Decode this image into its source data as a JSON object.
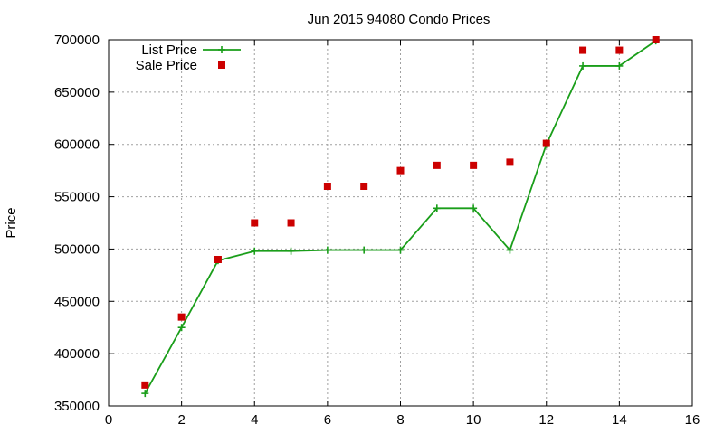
{
  "chart_data": {
    "type": "line",
    "title": "Jun 2015 94080 Condo Prices",
    "xlabel": "",
    "ylabel": "Price",
    "xlim": [
      0,
      16
    ],
    "ylim": [
      350000,
      700000
    ],
    "xticks": [
      0,
      2,
      4,
      6,
      8,
      10,
      12,
      14,
      16
    ],
    "yticks": [
      350000,
      400000,
      450000,
      500000,
      550000,
      600000,
      650000,
      700000
    ],
    "grid": true,
    "legend_position": "top-left",
    "series": [
      {
        "name": "List Price",
        "style": "line+cross",
        "color": "#1a9e1a",
        "x": [
          1,
          2,
          3,
          4,
          5,
          6,
          7,
          8,
          9,
          10,
          11,
          12,
          13,
          14,
          15
        ],
        "y": [
          362000,
          425000,
          489000,
          498000,
          498000,
          499000,
          499000,
          499000,
          539000,
          539000,
          499000,
          600000,
          675000,
          675000,
          699000
        ]
      },
      {
        "name": "Sale Price",
        "style": "square",
        "color": "#cc0000",
        "x": [
          1,
          2,
          3,
          4,
          5,
          6,
          7,
          8,
          9,
          10,
          11,
          12,
          13,
          14,
          15
        ],
        "y": [
          370000,
          435000,
          490000,
          525000,
          525000,
          560000,
          560000,
          575000,
          580000,
          580000,
          583000,
          601000,
          690000,
          690000,
          700000
        ]
      }
    ]
  }
}
